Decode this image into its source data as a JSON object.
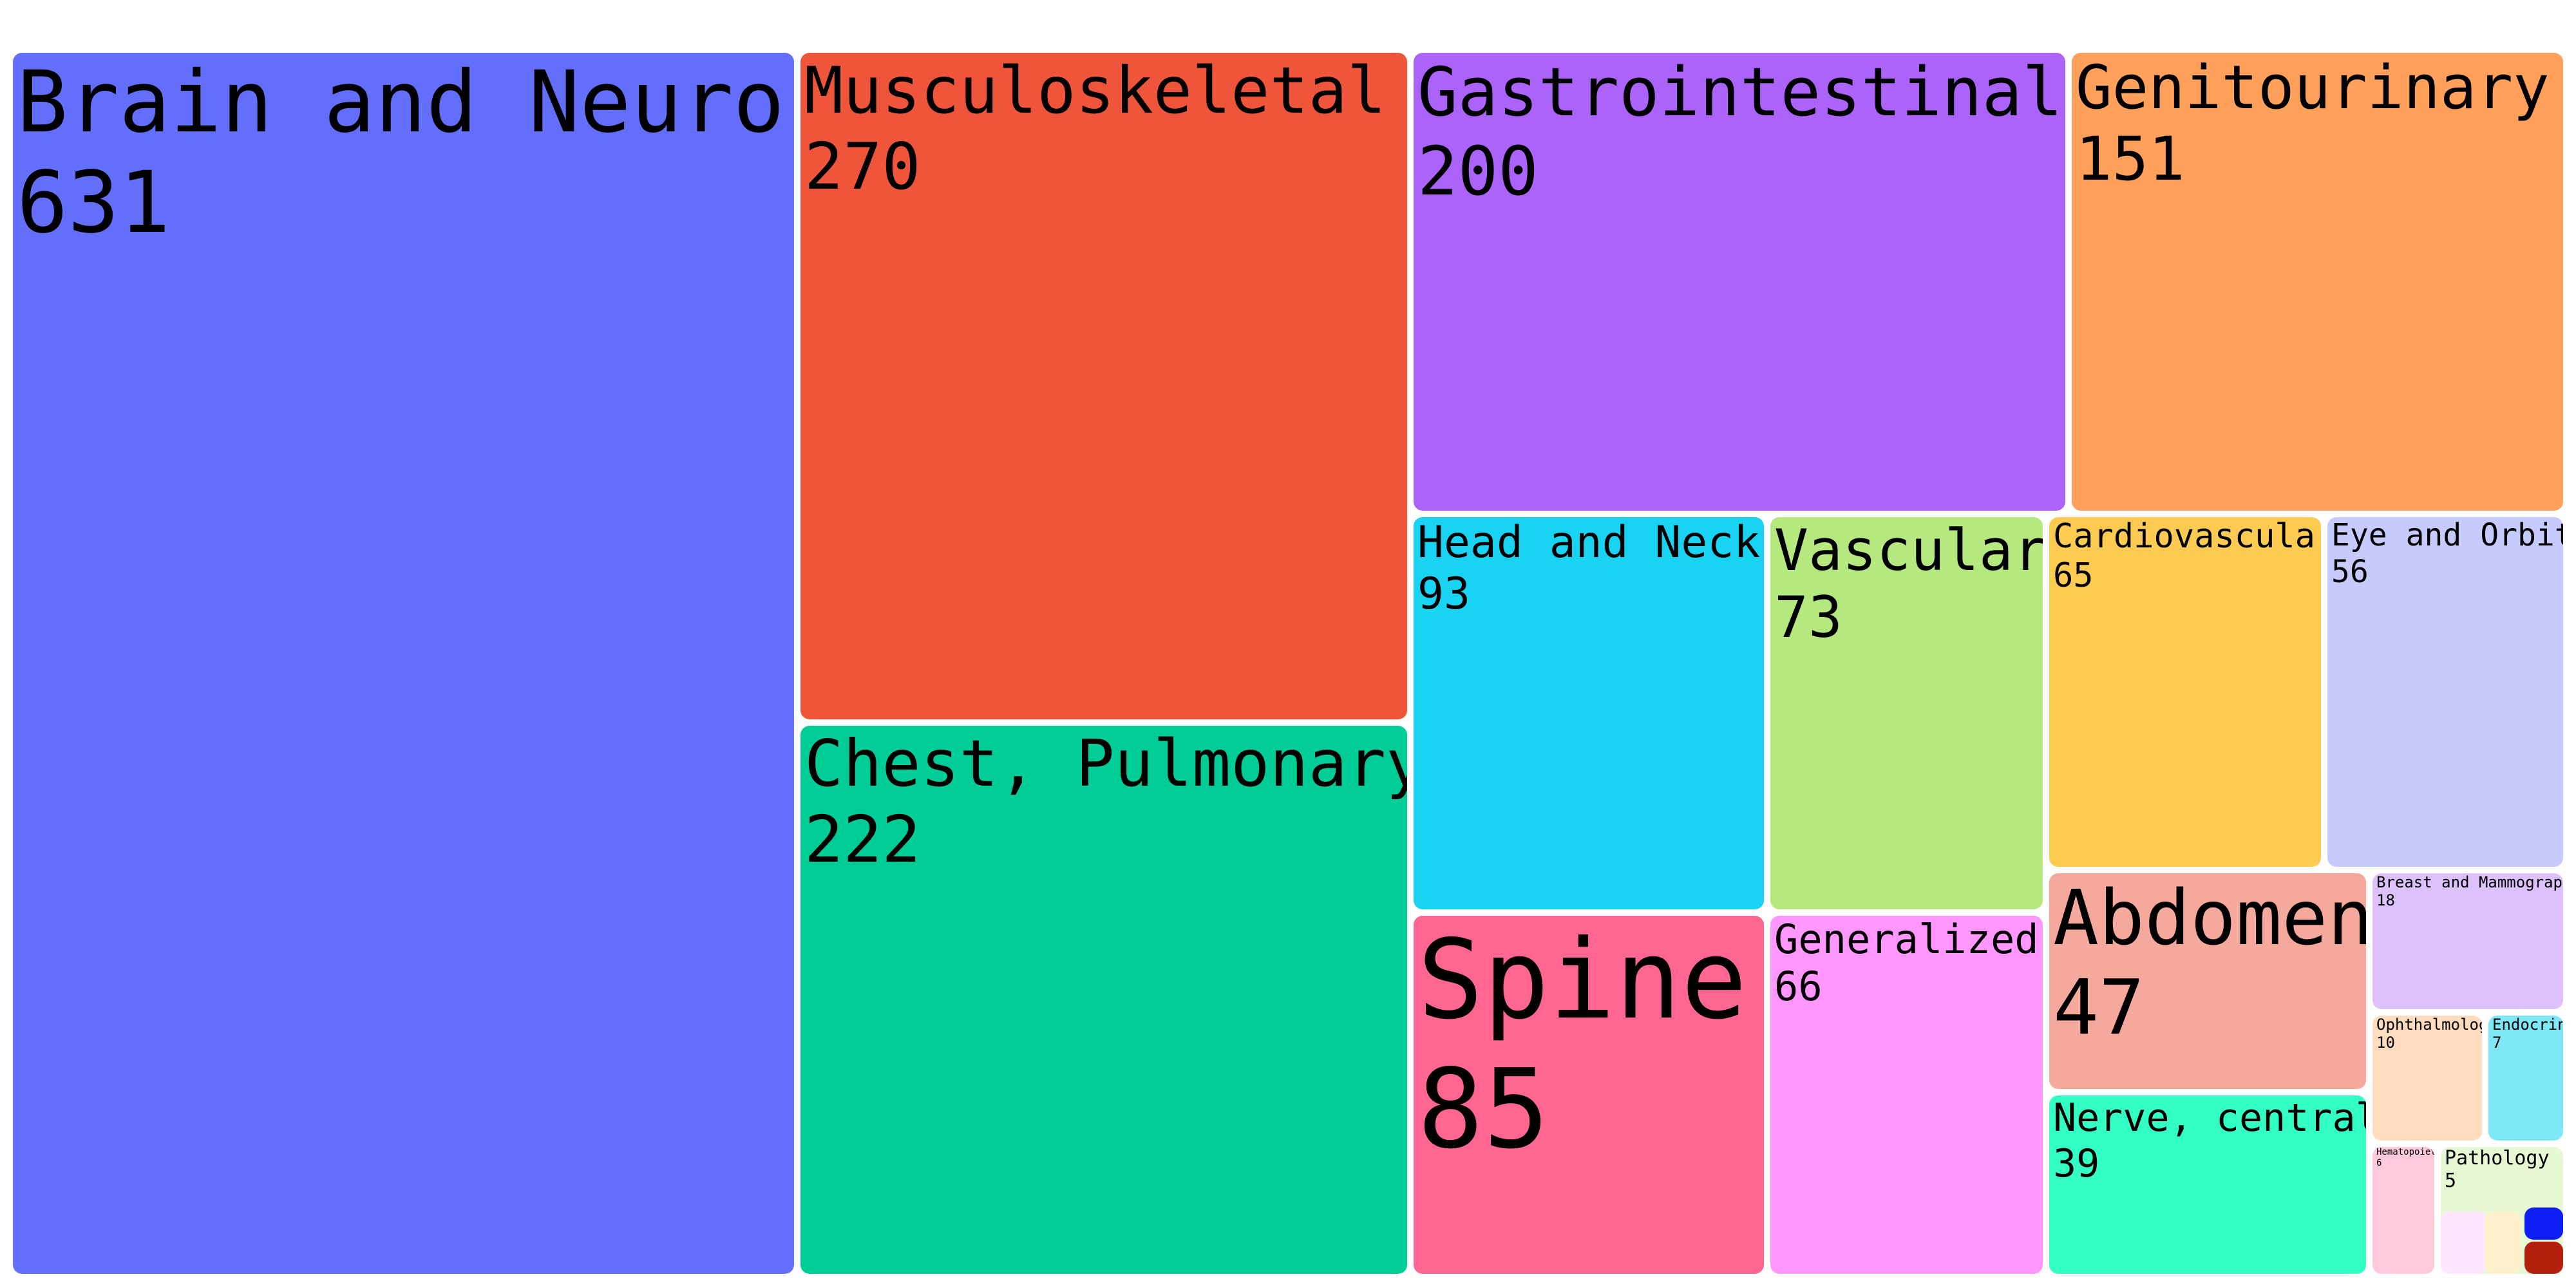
{
  "chart_data": {
    "type": "treemap",
    "title": "",
    "items": [
      {
        "label": "Brain and Neuro",
        "value": 631,
        "color": "#636efa"
      },
      {
        "label": "Musculoskeletal",
        "value": 270,
        "color": "#ef553b"
      },
      {
        "label": "Chest, Pulmonary",
        "value": 222,
        "color": "#00cc96"
      },
      {
        "label": "Gastrointestinal",
        "value": 200,
        "color": "#ab63fa"
      },
      {
        "label": "Genitourinary",
        "value": 151,
        "color": "#ffa15a"
      },
      {
        "label": "Head and Neck",
        "value": 93,
        "color": "#19d3f3"
      },
      {
        "label": "Vascular",
        "value": 73,
        "color": "#b6e880"
      },
      {
        "label": "Spine",
        "value": 85,
        "color": "#ff6692"
      },
      {
        "label": "Generalized",
        "value": 66,
        "color": "#ff97ff"
      },
      {
        "label": "Cardiovascular",
        "value": 65,
        "color": "#fecb52"
      },
      {
        "label": "Eye and Orbit",
        "value": 56,
        "color": "#c6cafd"
      },
      {
        "label": "Abdomen",
        "value": 47,
        "color": "#f5a99d"
      },
      {
        "label": "Breast and Mammography",
        "value": 18,
        "color": "#ddc1fc"
      },
      {
        "label": "Nerve, central",
        "value": 39,
        "color": "#33ffc4"
      },
      {
        "label": "Ophthalmology",
        "value": 10,
        "color": "#ffdcbd"
      },
      {
        "label": "Endocrine",
        "value": 7,
        "color": "#7fe8f6"
      },
      {
        "label": "Hematopoietic",
        "value": 6,
        "color": "#ffcadb"
      },
      {
        "label": "Pathology",
        "value": 5,
        "color": "#e6f7d4"
      },
      {
        "label": "",
        "value": null,
        "color": "#fde6ff"
      },
      {
        "label": "",
        "value": null,
        "color": "#fff0cc"
      },
      {
        "label": "",
        "value": null,
        "color": "#0d1ff5"
      },
      {
        "label": "",
        "value": null,
        "color": "#b3200e"
      }
    ]
  }
}
